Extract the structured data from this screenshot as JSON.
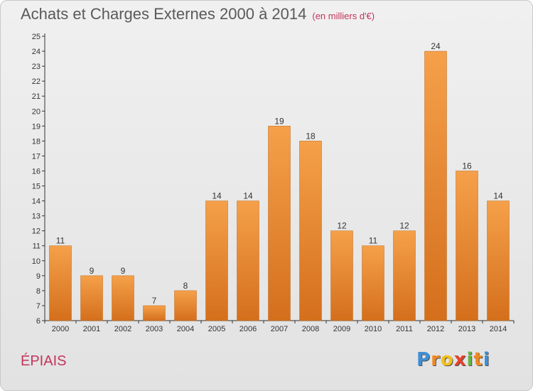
{
  "header": {
    "title": "Achats et Charges Externes 2000 à 2014",
    "subtitle": "(en milliers d'€)"
  },
  "footer": {
    "place": "ÉPIAIS",
    "brand": [
      "P",
      "r",
      "o",
      "x",
      "i",
      "t",
      "i"
    ]
  },
  "colors": {
    "bar_top": "#f5a04a",
    "bar_bottom": "#d46f1c",
    "title": "#5a5a5a",
    "accent": "#c3355b"
  },
  "chart_data": {
    "type": "bar",
    "categories": [
      "2000",
      "2001",
      "2002",
      "2003",
      "2004",
      "2005",
      "2006",
      "2007",
      "2008",
      "2009",
      "2010",
      "2011",
      "2012",
      "2013",
      "2014"
    ],
    "values": [
      11,
      9,
      9,
      7,
      8,
      14,
      14,
      19,
      18,
      12,
      11,
      12,
      24,
      16,
      14
    ],
    "data_labels": [
      "11",
      "9",
      "9",
      "7",
      "8",
      "14",
      "14",
      "19",
      "18",
      "12",
      "11",
      "12",
      "24",
      "16",
      "14"
    ],
    "yticks": [
      "6",
      "7",
      "8",
      "9",
      "10",
      "11",
      "12",
      "13",
      "14",
      "15",
      "16",
      "17",
      "18",
      "19",
      "20",
      "21",
      "22",
      "23",
      "24",
      "25"
    ],
    "ylim": [
      6,
      25
    ],
    "grid": false,
    "title": "Achats et Charges Externes 2000 à 2014",
    "xlabel": "",
    "ylabel": ""
  }
}
